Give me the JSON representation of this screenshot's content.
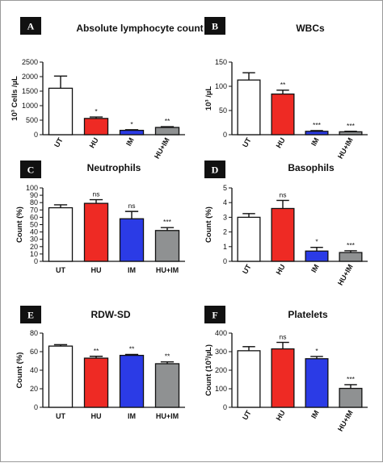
{
  "chart_data": [
    {
      "type": "bar",
      "panel": "A",
      "title": "Absolute lymphocyte count",
      "ylabel": "10³ Cells /µL",
      "categories": [
        "UT",
        "HU",
        "IM",
        "HU+IM"
      ],
      "values": [
        1600,
        560,
        150,
        250
      ],
      "errors": [
        420,
        50,
        20,
        25
      ],
      "significance": [
        "",
        "*",
        "*",
        "**"
      ],
      "ylim": [
        0,
        2500
      ],
      "yticks": [
        "0",
        "500",
        "1000",
        "1500",
        "2000",
        "2500"
      ],
      "ytick_values": [
        0,
        500,
        1000,
        1500,
        2000,
        2500
      ],
      "colors": [
        "#ffffff",
        "#ee2a24",
        "#2b3be6",
        "#8f9192"
      ],
      "rotated_labels": true
    },
    {
      "type": "bar",
      "panel": "B",
      "title": "WBCs",
      "ylabel": "10³ /µL",
      "categories": [
        "UT",
        "HU",
        "IM",
        "HU+IM"
      ],
      "values": [
        113,
        84,
        7,
        6
      ],
      "errors": [
        15,
        8,
        1.5,
        1
      ],
      "significance": [
        "",
        "**",
        "***",
        "***"
      ],
      "ylim": [
        0,
        150
      ],
      "yticks": [
        "0",
        "50",
        "100",
        "150"
      ],
      "ytick_values": [
        0,
        50,
        100,
        150
      ],
      "colors": [
        "#ffffff",
        "#ee2a24",
        "#2b3be6",
        "#8f9192"
      ],
      "rotated_labels": true
    },
    {
      "type": "bar",
      "panel": "C",
      "title": "Neutrophils",
      "ylabel": "Count (%)",
      "categories": [
        "UT",
        "HU",
        "IM",
        "HU+IM"
      ],
      "values": [
        73,
        79,
        58,
        42
      ],
      "errors": [
        4,
        5,
        10,
        4
      ],
      "significance": [
        "",
        "ns",
        "ns",
        "***"
      ],
      "ylim": [
        0,
        100
      ],
      "yticks": [
        "0",
        "10",
        "20",
        "30",
        "40",
        "50",
        "60",
        "70",
        "80",
        "90",
        "100"
      ],
      "ytick_values": [
        0,
        10,
        20,
        30,
        40,
        50,
        60,
        70,
        80,
        90,
        100
      ],
      "colors": [
        "#ffffff",
        "#ee2a24",
        "#2b3be6",
        "#8f9192"
      ],
      "rotated_labels": false
    },
    {
      "type": "bar",
      "panel": "D",
      "title": "Basophils",
      "ylabel": "Count (%)",
      "categories": [
        "UT",
        "HU",
        "IM",
        "HU+IM"
      ],
      "values": [
        3.0,
        3.6,
        0.7,
        0.6
      ],
      "errors": [
        0.25,
        0.55,
        0.25,
        0.12
      ],
      "significance": [
        "",
        "ns",
        "*",
        "***"
      ],
      "ylim": [
        0,
        5
      ],
      "yticks": [
        "0",
        "1",
        "2",
        "3",
        "4",
        "5"
      ],
      "ytick_values": [
        0,
        1,
        2,
        3,
        4,
        5
      ],
      "colors": [
        "#ffffff",
        "#ee2a24",
        "#2b3be6",
        "#8f9192"
      ],
      "rotated_labels": true
    },
    {
      "type": "bar",
      "panel": "E",
      "title": "RDW-SD",
      "ylabel": "Count (%)",
      "categories": [
        "UT",
        "HU",
        "IM",
        "HU+IM"
      ],
      "values": [
        66,
        53,
        56,
        47
      ],
      "errors": [
        1.5,
        2,
        1,
        2
      ],
      "significance": [
        "",
        "**",
        "**",
        "**"
      ],
      "ylim": [
        0,
        80
      ],
      "yticks": [
        "0",
        "20",
        "40",
        "60",
        "80"
      ],
      "ytick_values": [
        0,
        20,
        40,
        60,
        80
      ],
      "colors": [
        "#ffffff",
        "#ee2a24",
        "#2b3be6",
        "#8f9192"
      ],
      "rotated_labels": false
    },
    {
      "type": "bar",
      "panel": "F",
      "title": "Platelets",
      "ylabel": "Count (10³/µL)",
      "categories": [
        "UT",
        "HU",
        "IM",
        "HU+IM"
      ],
      "values": [
        305,
        315,
        262,
        102
      ],
      "errors": [
        22,
        35,
        12,
        20
      ],
      "significance": [
        "",
        "ns",
        "*",
        "***"
      ],
      "ylim": [
        0,
        400
      ],
      "yticks": [
        "0",
        "100",
        "200",
        "300",
        "400"
      ],
      "ytick_values": [
        0,
        100,
        200,
        300,
        400
      ],
      "colors": [
        "#ffffff",
        "#ee2a24",
        "#2b3be6",
        "#8f9192"
      ],
      "rotated_labels": true
    }
  ]
}
